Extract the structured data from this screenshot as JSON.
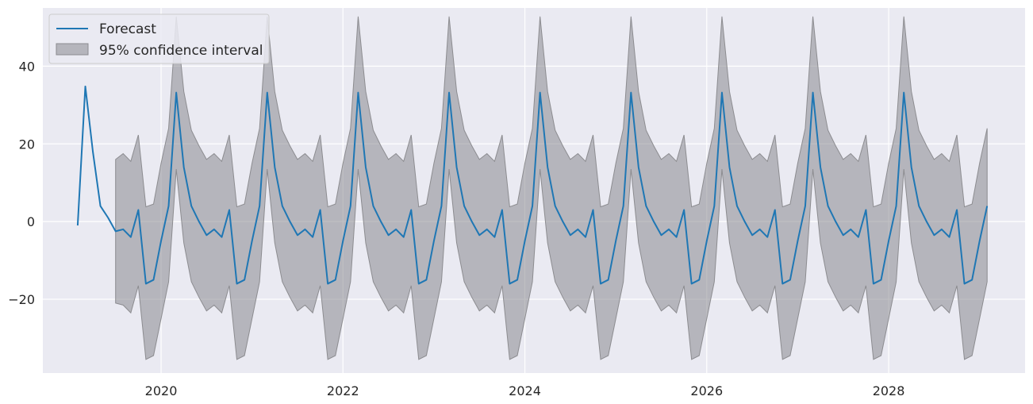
{
  "chart_data": {
    "type": "line",
    "title": "",
    "xlabel": "",
    "ylabel": "",
    "xlim": [
      2018.7,
      2029.5
    ],
    "ylim": [
      -39,
      55
    ],
    "x_ticks": [
      2020,
      2022,
      2024,
      2026,
      2028
    ],
    "x_tick_labels": [
      "2020",
      "2022",
      "2024",
      "2026",
      "2028"
    ],
    "y_ticks": [
      -20,
      0,
      20,
      40
    ],
    "y_tick_labels": [
      "−20",
      "0",
      "20",
      "40"
    ],
    "grid": true,
    "legend_position": "top-left",
    "colors": {
      "background": "#eaeaf2",
      "grid": "#ffffff",
      "forecast": "#1f77b4",
      "ci_fill": "#7f7f85",
      "ci_edge": "#8c8c90",
      "text": "#262626"
    },
    "series": [
      {
        "name": "Forecast",
        "type": "line",
        "x": [
          2019.083,
          2019.167,
          2019.25,
          2019.333,
          2019.417,
          2019.5,
          2019.583,
          2019.667,
          2019.75,
          2019.833,
          2019.917,
          2020.0,
          2020.083,
          2020.167,
          2020.25,
          2020.333,
          2020.417,
          2020.5,
          2020.583,
          2020.667,
          2020.75,
          2020.833,
          2020.917,
          2021.0,
          2021.083,
          2021.167,
          2021.25,
          2021.333,
          2021.417,
          2021.5,
          2021.583,
          2021.667,
          2021.75,
          2021.833,
          2021.917,
          2022.0,
          2022.083,
          2022.167,
          2022.25,
          2022.333,
          2022.417,
          2022.5,
          2022.583,
          2022.667,
          2022.75,
          2022.833,
          2022.917,
          2023.0,
          2023.083,
          2023.167,
          2023.25,
          2023.333,
          2023.417,
          2023.5,
          2023.583,
          2023.667,
          2023.75,
          2023.833,
          2023.917,
          2024.0,
          2024.083,
          2024.167,
          2024.25,
          2024.333,
          2024.417,
          2024.5,
          2024.583,
          2024.667,
          2024.75,
          2024.833,
          2024.917,
          2025.0,
          2025.083,
          2025.167,
          2025.25,
          2025.333,
          2025.417,
          2025.5,
          2025.583,
          2025.667,
          2025.75,
          2025.833,
          2025.917,
          2026.0,
          2026.083,
          2026.167,
          2026.25,
          2026.333,
          2026.417,
          2026.5,
          2026.583,
          2026.667,
          2026.75,
          2026.833,
          2026.917,
          2027.0,
          2027.083,
          2027.167,
          2027.25,
          2027.333,
          2027.417,
          2027.5,
          2027.583,
          2027.667,
          2027.75,
          2027.833,
          2027.917,
          2028.0,
          2028.083,
          2028.167,
          2028.25,
          2028.333,
          2028.417,
          2028.5,
          2028.583,
          2028.667,
          2028.75,
          2028.833,
          2028.917,
          2029.0,
          2029.083
        ],
        "y": [
          -1,
          34.8,
          18,
          4,
          1,
          -2.5,
          -2,
          -4,
          3,
          -16,
          -15,
          -5,
          4,
          33.2,
          14,
          4,
          0,
          -3.5,
          -2,
          -4,
          3,
          -16,
          -15,
          -5,
          4,
          33.2,
          14,
          4,
          0,
          -3.5,
          -2,
          -4,
          3,
          -16,
          -15,
          -5,
          4,
          33.2,
          14,
          4,
          0,
          -3.5,
          -2,
          -4,
          3,
          -16,
          -15,
          -5,
          4,
          33.2,
          14,
          4,
          0,
          -3.5,
          -2,
          -4,
          3,
          -16,
          -15,
          -5,
          4,
          33.2,
          14,
          4,
          0,
          -3.5,
          -2,
          -4,
          3,
          -16,
          -15,
          -5,
          4,
          33.2,
          14,
          4,
          0,
          -3.5,
          -2,
          -4,
          3,
          -16,
          -15,
          -5,
          4,
          33.2,
          14,
          4,
          0,
          -3.5,
          -2,
          -4,
          3,
          -16,
          -15,
          -5,
          4,
          33.2,
          14,
          4,
          0,
          -3.5,
          -2,
          -4,
          3,
          -16,
          -15,
          -5,
          4,
          33.2,
          14,
          4,
          0,
          -3.5,
          -2,
          -4,
          3,
          -16,
          -15,
          -5,
          4
        ]
      },
      {
        "name": "95% confidence interval",
        "type": "band",
        "x": [
          2019.5,
          2019.583,
          2019.667,
          2019.75,
          2019.833,
          2019.917,
          2020.0,
          2020.083,
          2020.167,
          2020.25,
          2020.333,
          2020.417,
          2020.5,
          2020.583,
          2020.667,
          2020.75,
          2020.833,
          2020.917,
          2021.0,
          2021.083,
          2021.167,
          2021.25,
          2021.333,
          2021.417,
          2021.5,
          2021.583,
          2021.667,
          2021.75,
          2021.833,
          2021.917,
          2022.0,
          2022.083,
          2022.167,
          2022.25,
          2022.333,
          2022.417,
          2022.5,
          2022.583,
          2022.667,
          2022.75,
          2022.833,
          2022.917,
          2023.0,
          2023.083,
          2023.167,
          2023.25,
          2023.333,
          2023.417,
          2023.5,
          2023.583,
          2023.667,
          2023.75,
          2023.833,
          2023.917,
          2024.0,
          2024.083,
          2024.167,
          2024.25,
          2024.333,
          2024.417,
          2024.5,
          2024.583,
          2024.667,
          2024.75,
          2024.833,
          2024.917,
          2025.0,
          2025.083,
          2025.167,
          2025.25,
          2025.333,
          2025.417,
          2025.5,
          2025.583,
          2025.667,
          2025.75,
          2025.833,
          2025.917,
          2026.0,
          2026.083,
          2026.167,
          2026.25,
          2026.333,
          2026.417,
          2026.5,
          2026.583,
          2026.667,
          2026.75,
          2026.833,
          2026.917,
          2027.0,
          2027.083,
          2027.167,
          2027.25,
          2027.333,
          2027.417,
          2027.5,
          2027.583,
          2027.667,
          2027.75,
          2027.833,
          2027.917,
          2028.0,
          2028.083,
          2028.167,
          2028.25,
          2028.333,
          2028.417,
          2028.5,
          2028.583,
          2028.667,
          2028.75,
          2028.833,
          2028.917,
          2029.0,
          2029.083
        ],
        "upper": [
          16,
          17.5,
          15.5,
          22.3,
          3.8,
          4.5,
          15,
          24,
          52.8,
          33.5,
          23.5,
          19.5,
          16,
          17.5,
          15.5,
          22.3,
          3.8,
          4.5,
          15,
          24,
          52.8,
          33.5,
          23.5,
          19.5,
          16,
          17.5,
          15.5,
          22.3,
          3.8,
          4.5,
          15,
          24,
          52.8,
          33.5,
          23.5,
          19.5,
          16,
          17.5,
          15.5,
          22.3,
          3.8,
          4.5,
          15,
          24,
          52.8,
          33.5,
          23.5,
          19.5,
          16,
          17.5,
          15.5,
          22.3,
          3.8,
          4.5,
          15,
          24,
          52.8,
          33.5,
          23.5,
          19.5,
          16,
          17.5,
          15.5,
          22.3,
          3.8,
          4.5,
          15,
          24,
          52.8,
          33.5,
          23.5,
          19.5,
          16,
          17.5,
          15.5,
          22.3,
          3.8,
          4.5,
          15,
          24,
          52.8,
          33.5,
          23.5,
          19.5,
          16,
          17.5,
          15.5,
          22.3,
          3.8,
          4.5,
          15,
          24,
          52.8,
          33.5,
          23.5,
          19.5,
          16,
          17.5,
          15.5,
          22.3,
          3.8,
          4.5,
          15,
          24,
          52.8,
          33.5,
          23.5,
          19.5,
          16,
          17.5,
          15.5,
          22.3,
          3.8,
          4.5,
          15,
          24
        ],
        "lower": [
          -21,
          -21.5,
          -23.5,
          -16.5,
          -35.5,
          -34.5,
          -25,
          -15.5,
          13.5,
          -5.5,
          -15.5,
          -19.5,
          -23,
          -21.5,
          -23.5,
          -16.5,
          -35.5,
          -34.5,
          -25,
          -15.5,
          13.5,
          -5.5,
          -15.5,
          -19.5,
          -23,
          -21.5,
          -23.5,
          -16.5,
          -35.5,
          -34.5,
          -25,
          -15.5,
          13.5,
          -5.5,
          -15.5,
          -19.5,
          -23,
          -21.5,
          -23.5,
          -16.5,
          -35.5,
          -34.5,
          -25,
          -15.5,
          13.5,
          -5.5,
          -15.5,
          -19.5,
          -23,
          -21.5,
          -23.5,
          -16.5,
          -35.5,
          -34.5,
          -25,
          -15.5,
          13.5,
          -5.5,
          -15.5,
          -19.5,
          -23,
          -21.5,
          -23.5,
          -16.5,
          -35.5,
          -34.5,
          -25,
          -15.5,
          13.5,
          -5.5,
          -15.5,
          -19.5,
          -23,
          -21.5,
          -23.5,
          -16.5,
          -35.5,
          -34.5,
          -25,
          -15.5,
          13.5,
          -5.5,
          -15.5,
          -19.5,
          -23,
          -21.5,
          -23.5,
          -16.5,
          -35.5,
          -34.5,
          -25,
          -15.5,
          13.5,
          -5.5,
          -15.5,
          -19.5,
          -23,
          -21.5,
          -23.5,
          -16.5,
          -35.5,
          -34.5,
          -25,
          -15.5,
          13.5,
          -5.5,
          -15.5,
          -19.5,
          -23,
          -21.5,
          -23.5,
          -16.5,
          -35.5,
          -34.5,
          -25,
          -15.5
        ]
      }
    ]
  },
  "legend": {
    "items": [
      {
        "label": "Forecast",
        "kind": "line"
      },
      {
        "label": "95% confidence interval",
        "kind": "patch"
      }
    ]
  }
}
